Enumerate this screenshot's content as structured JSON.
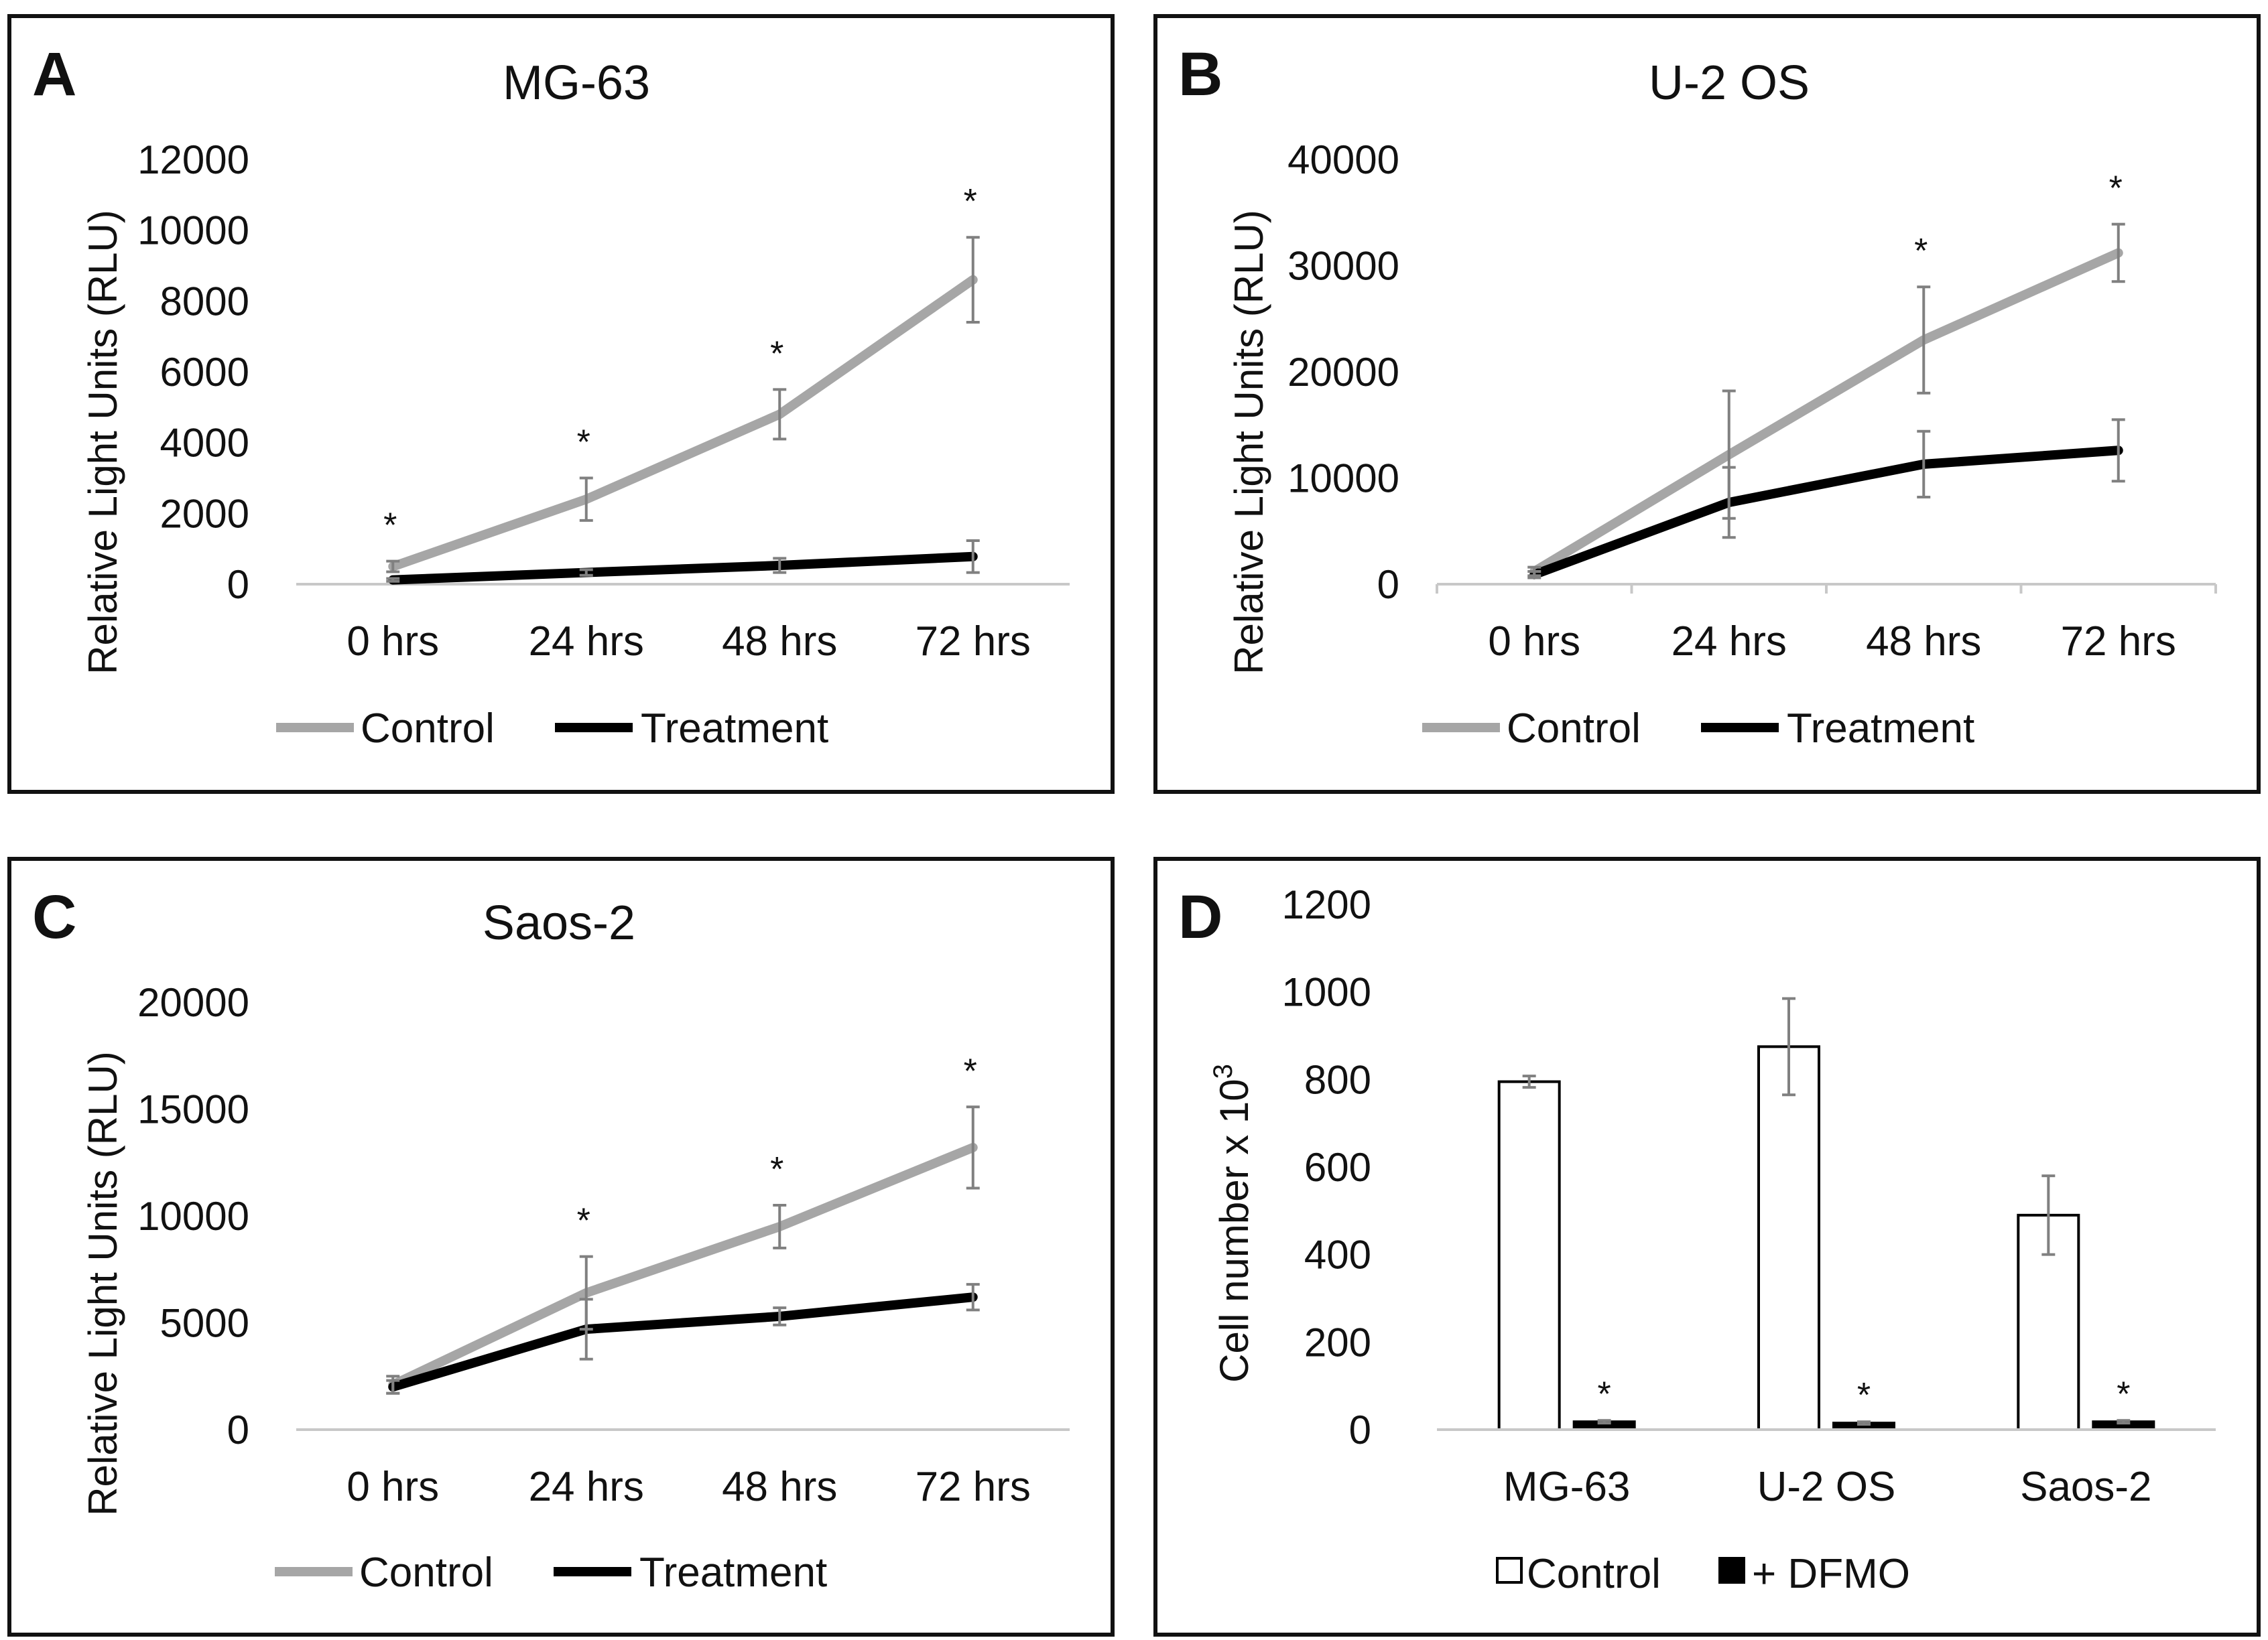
{
  "figure": {
    "legend_line": {
      "control_label": "Control",
      "treatment_label": "Treatment"
    },
    "legend_bar": {
      "control_label": "Control",
      "dfmo_label": "+ DFMO"
    },
    "colors": {
      "control_line": "#a6a6a6",
      "treatment_line": "#000000",
      "error_bar": "#808080",
      "axis": "#c8c8c8",
      "text": "#111111"
    }
  },
  "chart_data": [
    {
      "panel": "A",
      "type": "line",
      "title": "MG-63",
      "ylabel": "Relative Light Units (RLU)",
      "xlabel": "",
      "categories": [
        "0 hrs",
        "24 hrs",
        "48 hrs",
        "72 hrs"
      ],
      "ylim": [
        0,
        12000
      ],
      "yticks": [
        "0",
        "2000",
        "4000",
        "6000",
        "8000",
        "10000",
        "12000"
      ],
      "series": [
        {
          "name": "Control",
          "values": [
            500,
            2400,
            4800,
            8600
          ],
          "errors": [
            150,
            600,
            700,
            1200
          ]
        },
        {
          "name": "Treatment",
          "values": [
            120,
            330,
            530,
            780
          ],
          "errors": [
            40,
            80,
            200,
            450
          ]
        }
      ],
      "annotations": [
        "*",
        "*",
        "*",
        "*"
      ]
    },
    {
      "panel": "B",
      "type": "line",
      "title": "U-2 OS",
      "ylabel": "Relative Light Units (RLU)",
      "xlabel": "",
      "categories": [
        "0 hrs",
        "24 hrs",
        "48 hrs",
        "72 hrs"
      ],
      "ylim": [
        0,
        40000
      ],
      "yticks": [
        "0",
        "10000",
        "20000",
        "30000",
        "40000"
      ],
      "series": [
        {
          "name": "Control",
          "values": [
            1200,
            12200,
            23000,
            31200
          ],
          "errors": [
            400,
            6000,
            5000,
            2700
          ]
        },
        {
          "name": "Treatment",
          "values": [
            900,
            7700,
            11300,
            12600
          ],
          "errors": [
            300,
            3300,
            3100,
            2900
          ]
        }
      ],
      "annotations": [
        "",
        "",
        "*",
        "*"
      ]
    },
    {
      "panel": "C",
      "type": "line",
      "title": "Saos-2",
      "ylabel": "Relative Light Units (RLU)",
      "xlabel": "",
      "categories": [
        "0 hrs",
        "24 hrs",
        "48 hrs",
        "72 hrs"
      ],
      "ylim": [
        0,
        20000
      ],
      "yticks": [
        "0",
        "5000",
        "10000",
        "15000",
        "20000"
      ],
      "series": [
        {
          "name": "Control",
          "values": [
            2100,
            6400,
            9500,
            13200
          ],
          "errors": [
            400,
            1700,
            1000,
            1900
          ]
        },
        {
          "name": "Treatment",
          "values": [
            2000,
            4700,
            5300,
            6200
          ],
          "errors": [
            300,
            1400,
            400,
            600
          ]
        }
      ],
      "annotations": [
        "",
        "*",
        "*",
        "*"
      ]
    },
    {
      "panel": "D",
      "type": "bar",
      "title": "",
      "ylabel": "Cell number x 10",
      "ylabel_sup": "3",
      "xlabel": "",
      "categories": [
        "MG-63",
        "U-2 OS",
        "Saos-2"
      ],
      "ylim": [
        0,
        1200
      ],
      "yticks": [
        "0",
        "200",
        "400",
        "600",
        "800",
        "1000",
        "1200"
      ],
      "series": [
        {
          "name": "Control",
          "values": [
            795,
            875,
            490
          ],
          "errors": [
            13,
            110,
            90
          ]
        },
        {
          "name": "+ DFMO",
          "values": [
            18,
            15,
            18
          ],
          "errors": [
            3,
            3,
            3
          ]
        }
      ],
      "annotations": [
        "*",
        "*",
        "*"
      ]
    }
  ]
}
